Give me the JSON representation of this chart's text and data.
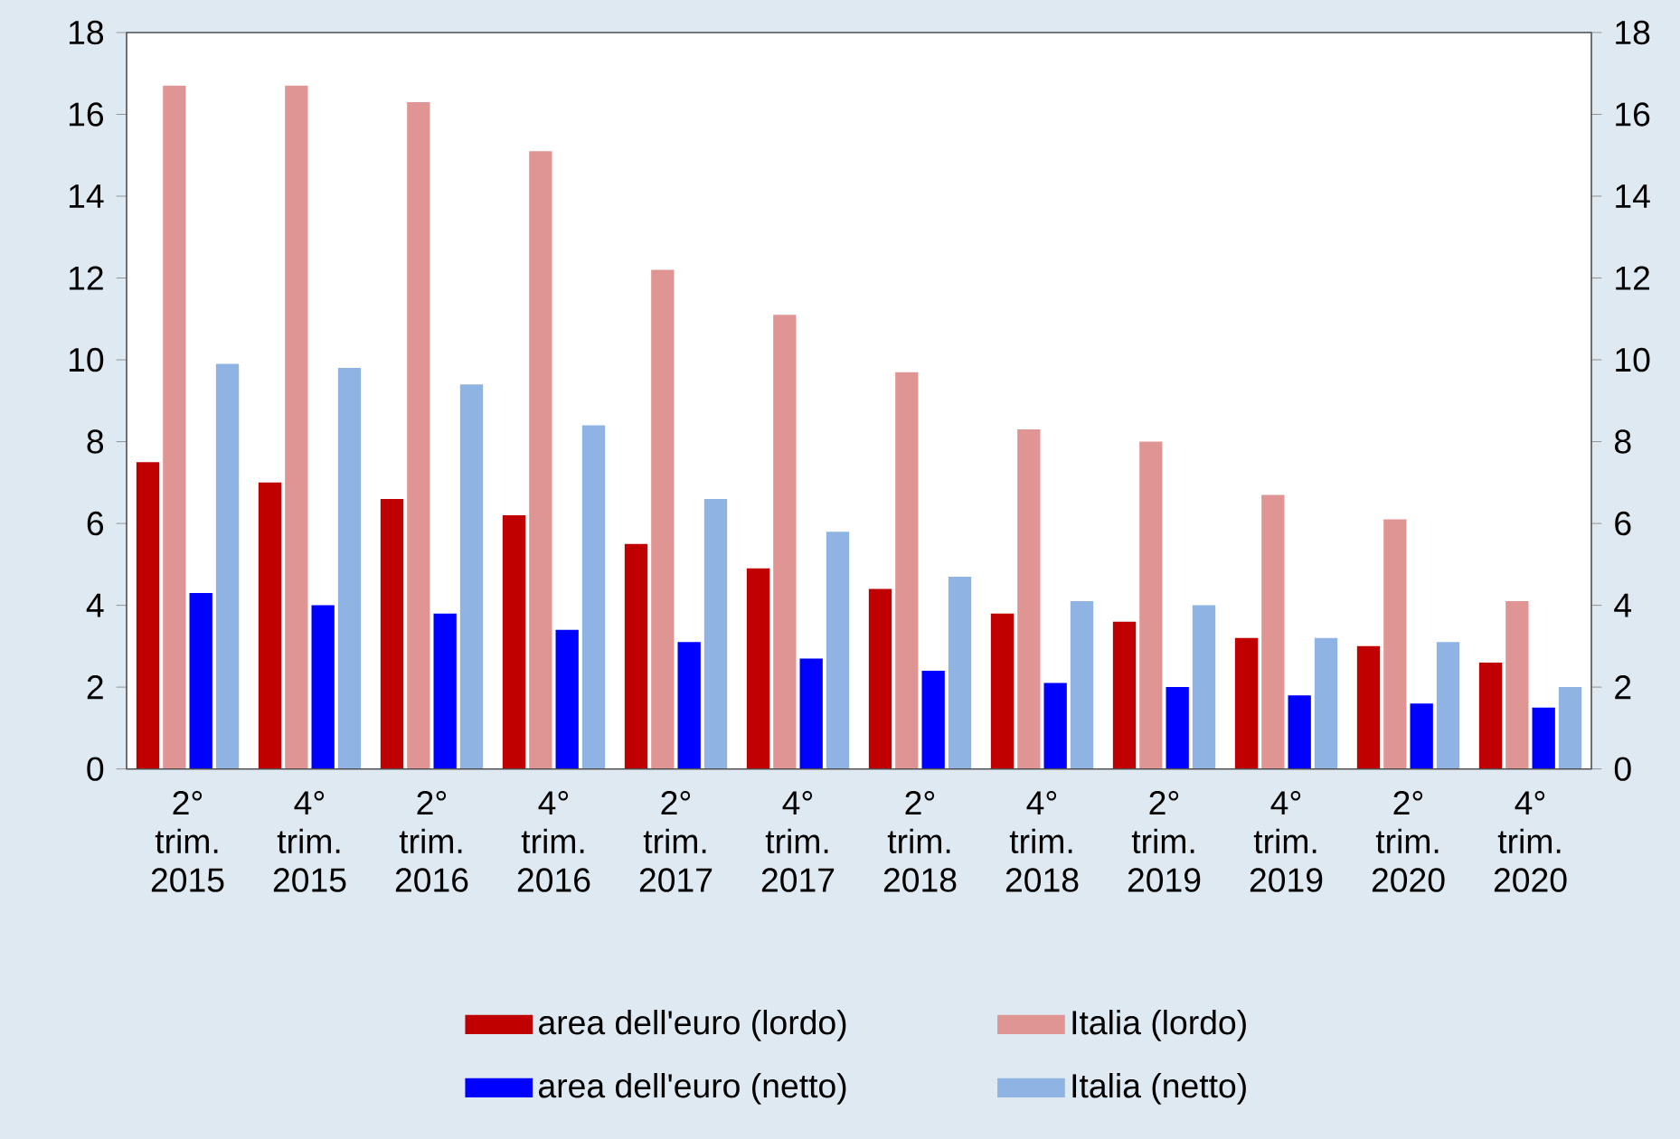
{
  "chart_data": {
    "type": "bar",
    "categories": [
      "2° trim. 2015",
      "4° trim. 2015",
      "2° trim. 2016",
      "4° trim. 2016",
      "2° trim. 2017",
      "4° trim. 2017",
      "2° trim. 2018",
      "4° trim. 2018",
      "2° trim. 2019",
      "4° trim. 2019",
      "2° trim. 2020",
      "4° trim. 2020"
    ],
    "series": [
      {
        "name": "area dell'euro (lordo)",
        "color": "#c00000",
        "values": [
          7.5,
          7.0,
          6.6,
          6.2,
          5.5,
          4.9,
          4.4,
          3.8,
          3.6,
          3.2,
          3.0,
          2.6
        ]
      },
      {
        "name": "Italia (lordo)",
        "color": "#e09595",
        "values": [
          16.7,
          16.7,
          16.3,
          15.1,
          12.2,
          11.1,
          9.7,
          8.3,
          8.0,
          6.7,
          6.1,
          4.1
        ]
      },
      {
        "name": "area dell'euro (netto)",
        "color": "#0000ff",
        "values": [
          4.3,
          4.0,
          3.8,
          3.4,
          3.1,
          2.7,
          2.4,
          2.1,
          2.0,
          1.8,
          1.6,
          1.5
        ]
      },
      {
        "name": "Italia (netto)",
        "color": "#8fb4e3",
        "values": [
          9.9,
          9.8,
          9.4,
          8.4,
          6.6,
          5.8,
          4.7,
          4.1,
          4.0,
          3.2,
          3.1,
          2.0
        ]
      }
    ],
    "ylim": [
      0,
      18
    ],
    "yticks": [
      0,
      2,
      4,
      6,
      8,
      10,
      12,
      14,
      16,
      18
    ],
    "y2lim": [
      0,
      18
    ],
    "y2ticks": [
      0,
      2,
      4,
      6,
      8,
      10,
      12,
      14,
      16,
      18
    ],
    "legend": "bottom"
  }
}
